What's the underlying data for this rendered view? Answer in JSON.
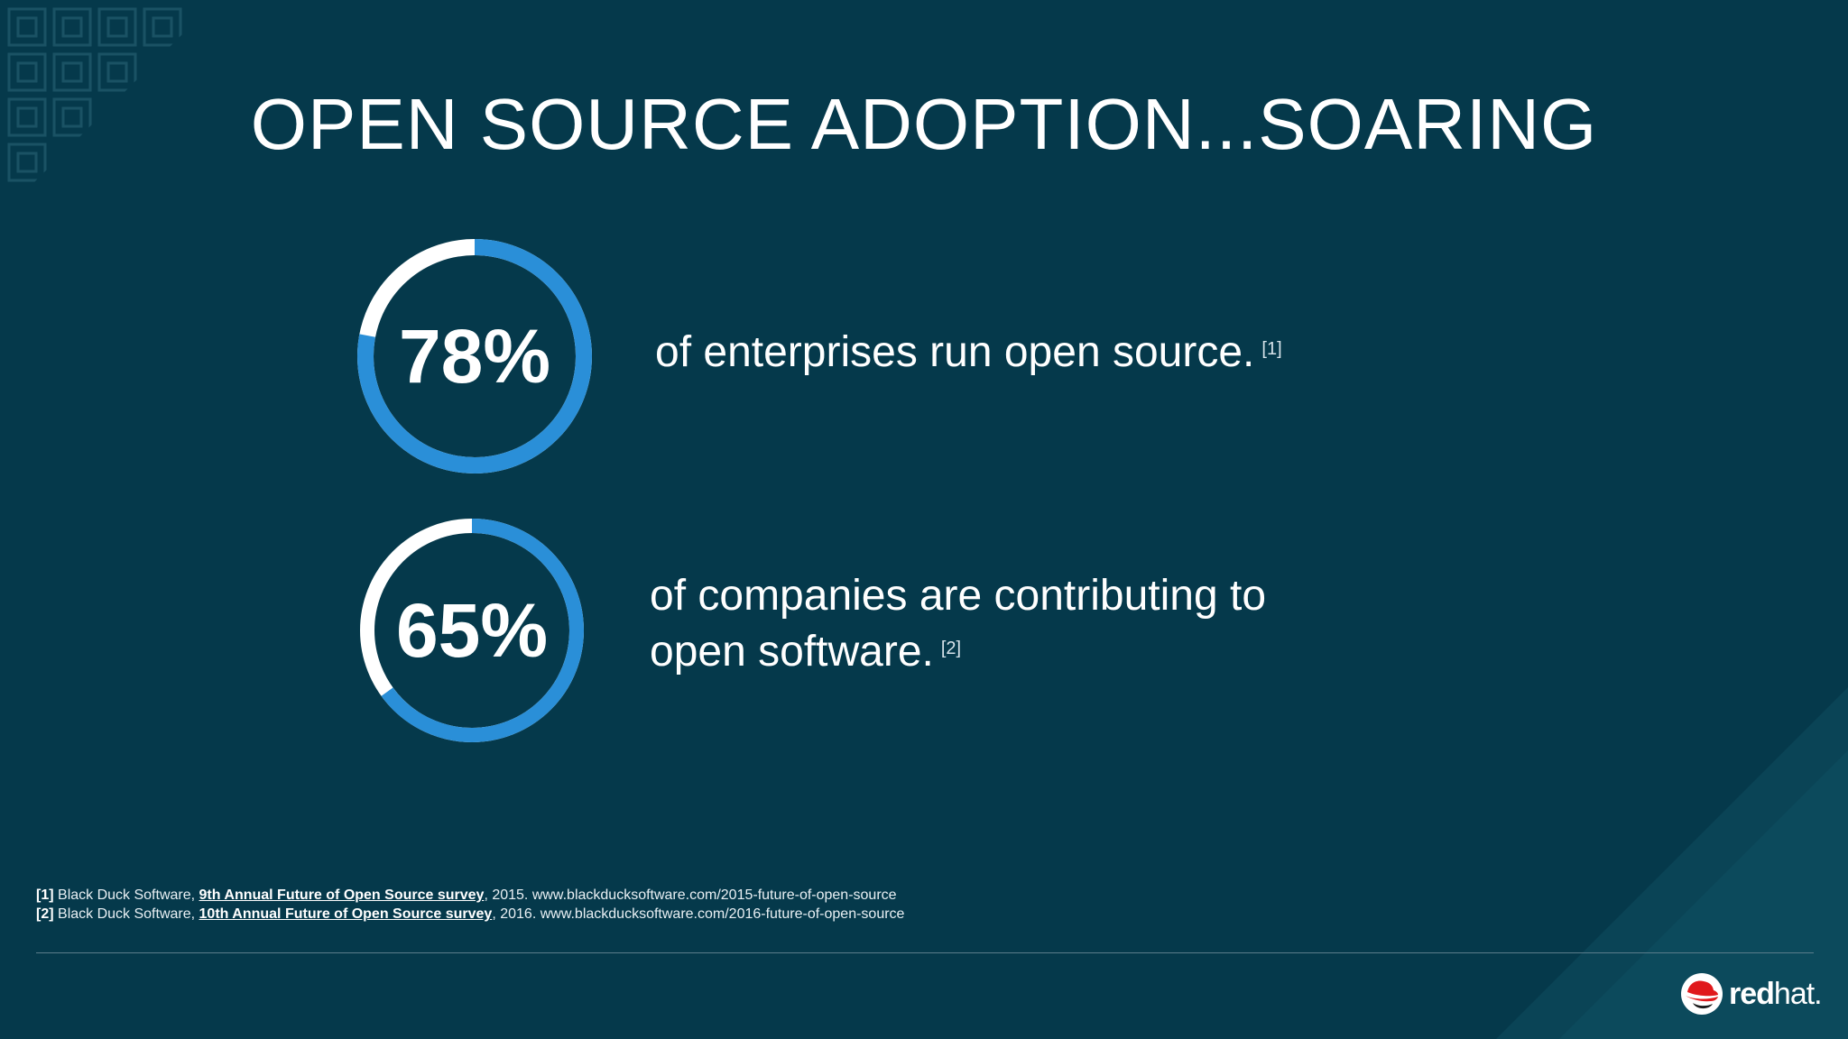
{
  "title": "OPEN SOURCE ADOPTION...SOARING",
  "colors": {
    "background": "#05394b",
    "ring_blue": "#2a8fd8",
    "ring_white": "#ffffff",
    "logo_red": "#e0191c"
  },
  "stats": [
    {
      "value_label": "78%",
      "fraction": 0.78,
      "lines": [
        "of enterprises run open source."
      ],
      "ref": "[1]"
    },
    {
      "value_label": "65%",
      "fraction": 0.65,
      "lines": [
        "of companies are contributing to",
        "open software."
      ],
      "ref": "[2]"
    }
  ],
  "footnotes": [
    {
      "ref": "[1]",
      "source": "Black Duck Software,",
      "link": "9th Annual Future of Open Source survey",
      "rest": ", 2015. www.blackducksoftware.com/2015-future-of-open-source"
    },
    {
      "ref": "[2]",
      "source": "Black Duck Software,",
      "link": "10th Annual Future of Open Source survey",
      "rest": ", 2016. www.blackducksoftware.com/2016-future-of-open-source"
    }
  ],
  "logo": {
    "bold": "red",
    "regular": "hat.",
    "icon": "redhat-shadowman-icon"
  }
}
